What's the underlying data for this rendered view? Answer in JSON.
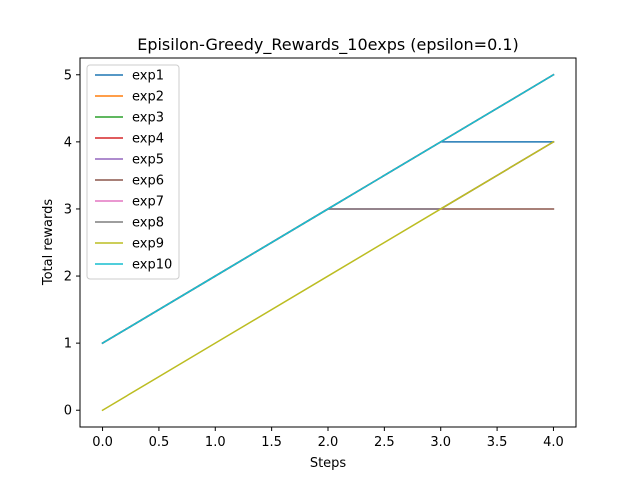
{
  "chart_data": {
    "type": "line",
    "title": "Episilon-Greedy_Rewards_10exps (epsilon=0.1)",
    "xlabel": "Steps",
    "ylabel": "Total rewards",
    "xlim": [
      -0.2,
      4.2
    ],
    "ylim": [
      -0.25,
      5.25
    ],
    "xticks": [
      0.0,
      0.5,
      1.0,
      1.5,
      2.0,
      2.5,
      3.0,
      3.5,
      4.0
    ],
    "xtick_labels": [
      "0.0",
      "0.5",
      "1.0",
      "1.5",
      "2.0",
      "2.5",
      "3.0",
      "3.5",
      "4.0"
    ],
    "yticks": [
      0,
      1,
      2,
      3,
      4,
      5
    ],
    "ytick_labels": [
      "0",
      "1",
      "2",
      "3",
      "4",
      "5"
    ],
    "grid": false,
    "legend_position": "top-left",
    "x": [
      0,
      1,
      2,
      3,
      4
    ],
    "series": [
      {
        "name": "exp1",
        "color": "#1f77b4",
        "values": [
          1,
          2,
          3,
          4,
          4
        ]
      },
      {
        "name": "exp2",
        "color": "#ff7f0e",
        "values": [
          1,
          2,
          3,
          4,
          5
        ]
      },
      {
        "name": "exp3",
        "color": "#2ca02c",
        "values": [
          1,
          2,
          3,
          4,
          5
        ]
      },
      {
        "name": "exp4",
        "color": "#d62728",
        "values": [
          1,
          2,
          3,
          4,
          5
        ]
      },
      {
        "name": "exp5",
        "color": "#9467bd",
        "values": [
          1,
          2,
          3,
          4,
          5
        ]
      },
      {
        "name": "exp6",
        "color": "#8c564b",
        "values": [
          1,
          2,
          3,
          3,
          3
        ]
      },
      {
        "name": "exp7",
        "color": "#e377c2",
        "values": [
          1,
          2,
          3,
          3,
          4
        ]
      },
      {
        "name": "exp8",
        "color": "#7f7f7f",
        "values": [
          1,
          2,
          3,
          3,
          4
        ]
      },
      {
        "name": "exp9",
        "color": "#bcbd22",
        "values": [
          0,
          1,
          2,
          3,
          4
        ]
      },
      {
        "name": "exp10",
        "color": "#17becf",
        "values": [
          1,
          2,
          3,
          4,
          5
        ]
      }
    ]
  }
}
